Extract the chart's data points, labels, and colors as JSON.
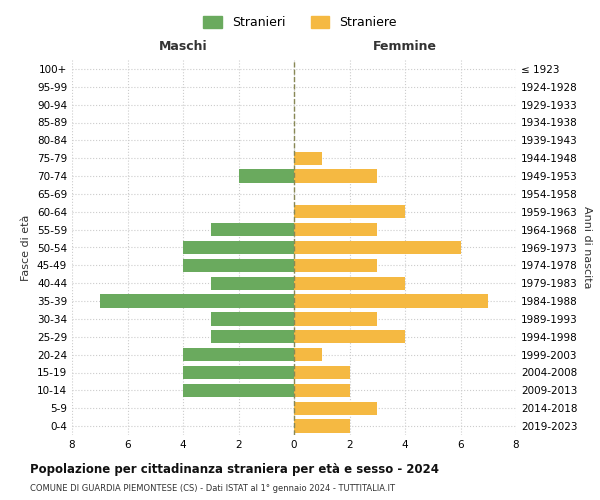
{
  "age_groups": [
    "0-4",
    "5-9",
    "10-14",
    "15-19",
    "20-24",
    "25-29",
    "30-34",
    "35-39",
    "40-44",
    "45-49",
    "50-54",
    "55-59",
    "60-64",
    "65-69",
    "70-74",
    "75-79",
    "80-84",
    "85-89",
    "90-94",
    "95-99",
    "100+"
  ],
  "birth_years": [
    "2019-2023",
    "2014-2018",
    "2009-2013",
    "2004-2008",
    "1999-2003",
    "1994-1998",
    "1989-1993",
    "1984-1988",
    "1979-1983",
    "1974-1978",
    "1969-1973",
    "1964-1968",
    "1959-1963",
    "1954-1958",
    "1949-1953",
    "1944-1948",
    "1939-1943",
    "1934-1938",
    "1929-1933",
    "1924-1928",
    "≤ 1923"
  ],
  "maschi": [
    0,
    0,
    4,
    4,
    4,
    3,
    3,
    7,
    3,
    4,
    4,
    3,
    0,
    0,
    2,
    0,
    0,
    0,
    0,
    0,
    0
  ],
  "femmine": [
    2,
    3,
    2,
    2,
    1,
    4,
    3,
    7,
    4,
    3,
    6,
    3,
    4,
    0,
    3,
    1,
    0,
    0,
    0,
    0,
    0
  ],
  "color_maschi": "#6aaa5e",
  "color_femmine": "#f5b942",
  "title": "Popolazione per cittadinanza straniera per età e sesso - 2024",
  "subtitle": "COMUNE DI GUARDIA PIEMONTESE (CS) - Dati ISTAT al 1° gennaio 2024 - TUTTITALIA.IT",
  "xlabel_left": "Maschi",
  "xlabel_right": "Femmine",
  "ylabel_left": "Fasce di età",
  "ylabel_right": "Anni di nascita",
  "legend_maschi": "Stranieri",
  "legend_femmine": "Straniere",
  "xlim": 8,
  "background_color": "#ffffff",
  "grid_color": "#cccccc",
  "dashed_line_color": "#888855"
}
